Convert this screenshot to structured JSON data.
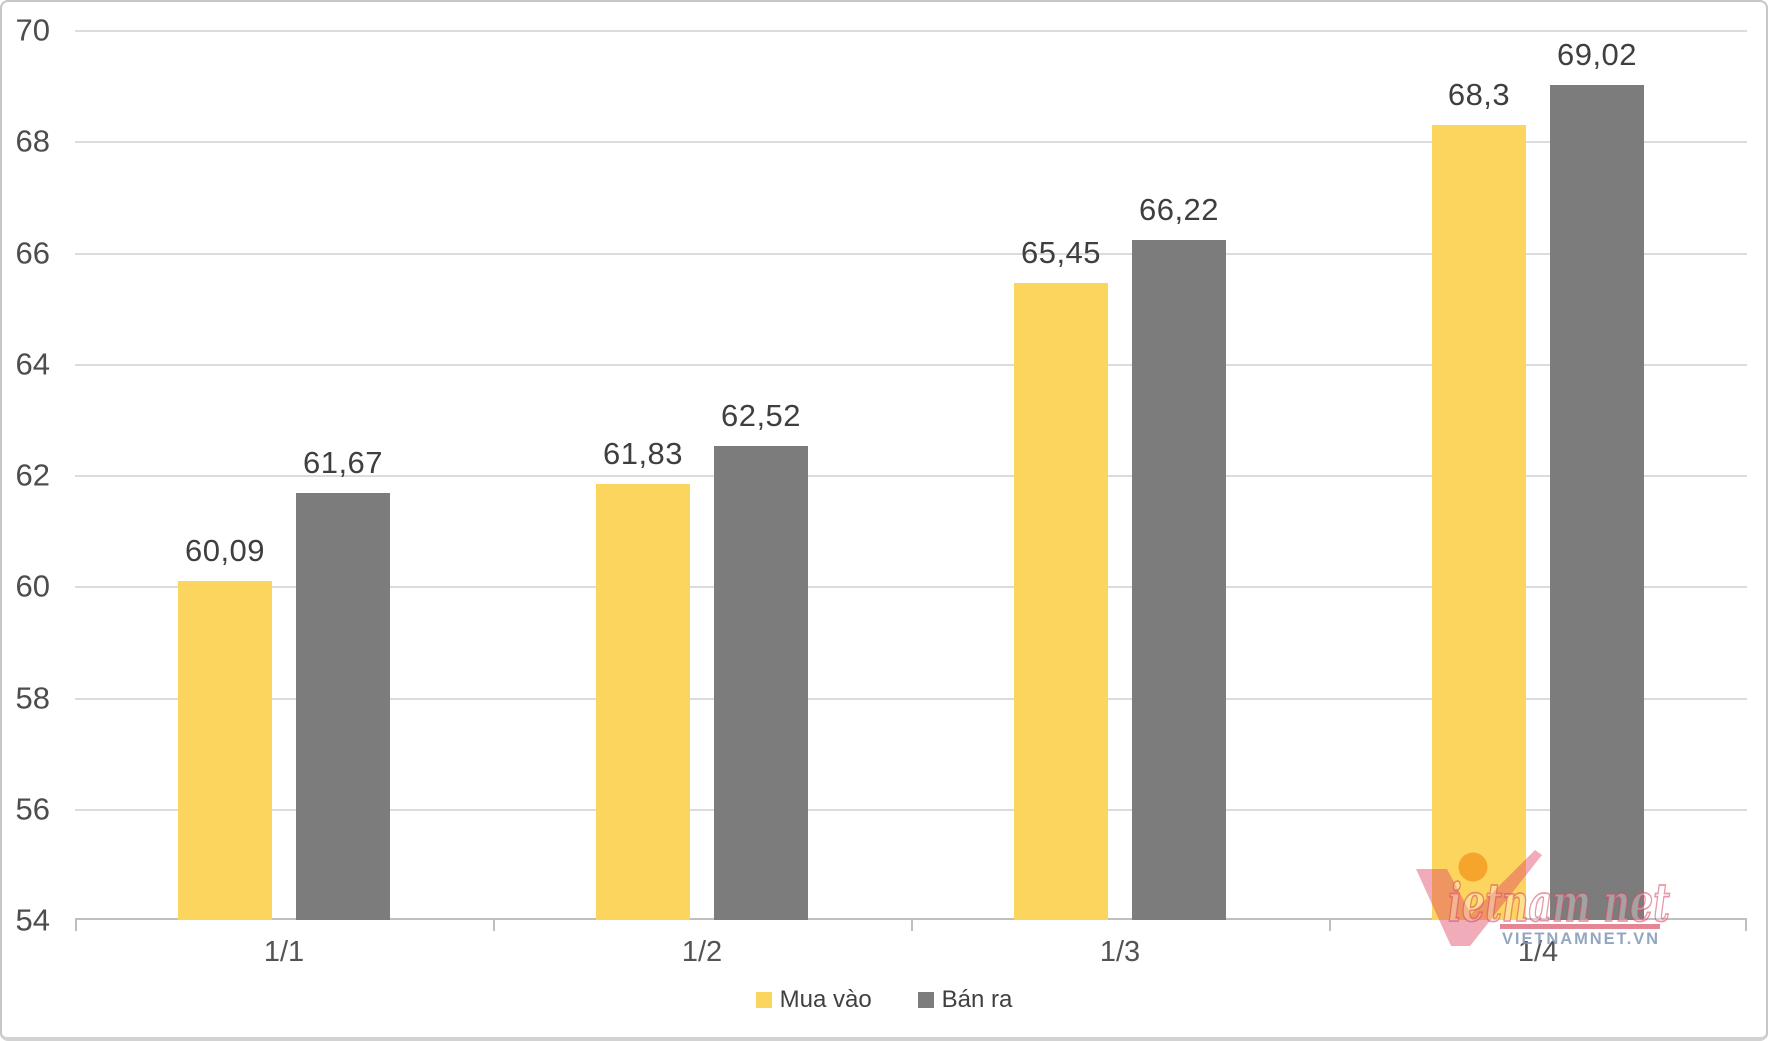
{
  "chart_data": {
    "type": "bar",
    "title": "",
    "xlabel": "",
    "ylabel": "",
    "categories": [
      "1/1",
      "1/2",
      "1/3",
      "1/4"
    ],
    "series": [
      {
        "name": "Mua vào",
        "color": "#FCD55F",
        "values": [
          60.09,
          61.83,
          65.45,
          68.3
        ],
        "labels": [
          "60,09",
          "61,83",
          "65,45",
          "68,3"
        ]
      },
      {
        "name": "Bán ra",
        "color": "#7C7C7C",
        "values": [
          61.67,
          62.52,
          66.22,
          69.02
        ],
        "labels": [
          "61,67",
          "62,52",
          "66,22",
          "69,02"
        ]
      }
    ],
    "ylim": [
      54,
      70
    ],
    "yticks": [
      70,
      68,
      66,
      64,
      62,
      60,
      58,
      56,
      54
    ],
    "grid": true,
    "legend_position": "bottom"
  },
  "colors": {
    "gridline": "#dcdcdc",
    "axis_line": "#bfbfbf",
    "tick_text": "#4d4d4d",
    "value_text": "#3f3f3f",
    "buy_yellow": "#FCD55F",
    "sell_gray": "#7C7C7C",
    "watermark_pink": "#DE4663",
    "watermark_orange": "#F4A127",
    "watermark_bluegray": "#8296B4"
  },
  "watermark": {
    "brand_script": "ietnam net",
    "site": "VIETNAMNET.VN"
  }
}
